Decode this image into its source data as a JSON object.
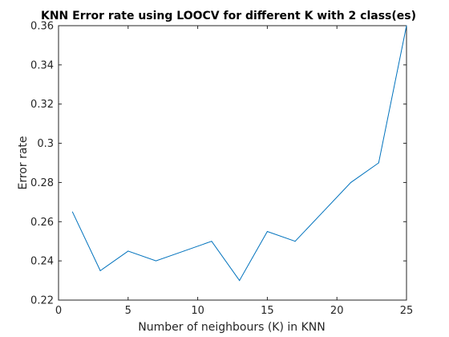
{
  "chart_data": {
    "type": "line",
    "title": "KNN Error rate using LOOCV for different K with 2 class(es)",
    "xlabel": "Number of neighbours (K) in KNN",
    "ylabel": "Error rate",
    "xlim": [
      0,
      25
    ],
    "ylim": [
      0.22,
      0.36
    ],
    "xticks": [
      0,
      5,
      10,
      15,
      20,
      25
    ],
    "xtick_labels": [
      "0",
      "5",
      "10",
      "15",
      "20",
      "25"
    ],
    "yticks": [
      0.22,
      0.24,
      0.26,
      0.28,
      0.3,
      0.32,
      0.34,
      0.36
    ],
    "ytick_labels": [
      "0.22",
      "0.24",
      "0.26",
      "0.28",
      "0.3",
      "0.32",
      "0.34",
      "0.36"
    ],
    "grid": false,
    "series": [
      {
        "x": [
          1,
          3,
          5,
          7,
          9,
          11,
          13,
          15,
          17,
          19,
          21,
          23,
          25
        ],
        "y": [
          0.265,
          0.235,
          0.245,
          0.24,
          0.245,
          0.25,
          0.23,
          0.255,
          0.25,
          0.265,
          0.28,
          0.29,
          0.36
        ],
        "color": "#0072bd"
      }
    ]
  }
}
